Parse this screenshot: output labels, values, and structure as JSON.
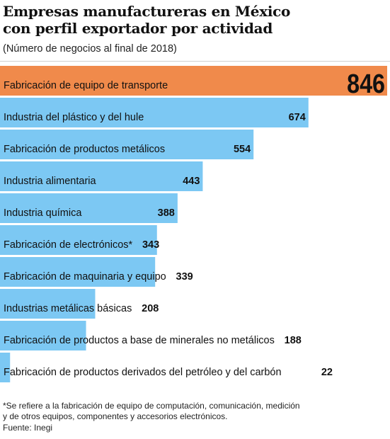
{
  "header": {
    "title_line1": "Empresas manufactureras en México",
    "title_line2": "con perfil exportador  por actividad",
    "subtitle": "(Número de negocios al final de 2018)"
  },
  "footer": {
    "note_line1": "*Se refiere a la fabricación de equipo de computación, comunicación, medición",
    "note_line2": "y de otros equipos, componentes y accesorios electrónicos.",
    "source": "Fuente: Inegi"
  },
  "colors": {
    "highlight": "#f08a4b",
    "bar": "#7cc8f3",
    "text": "#111111"
  },
  "chart_data": {
    "type": "bar",
    "orientation": "horizontal",
    "title": "Empresas manufactureras en México con perfil exportador  por actividad",
    "subtitle": "(Número de negocios al final de 2018)",
    "xlim": [
      0,
      846
    ],
    "categories": [
      "Fabricación de equipo de transporte",
      "Industria del plástico y del hule",
      "Fabricación de productos metálicos",
      "Industria alimentaria",
      "Industria química",
      "Fabricación de electrónicos*",
      "Fabricación de maquinaria y equipo",
      "Industrias metálicas básicas",
      "Fabricación de productos a base de minerales no metálicos",
      "Fabricación de productos derivados del petróleo y del carbón"
    ],
    "values": [
      846,
      674,
      554,
      443,
      388,
      343,
      339,
      208,
      188,
      22
    ],
    "highlighted_index": 0
  }
}
